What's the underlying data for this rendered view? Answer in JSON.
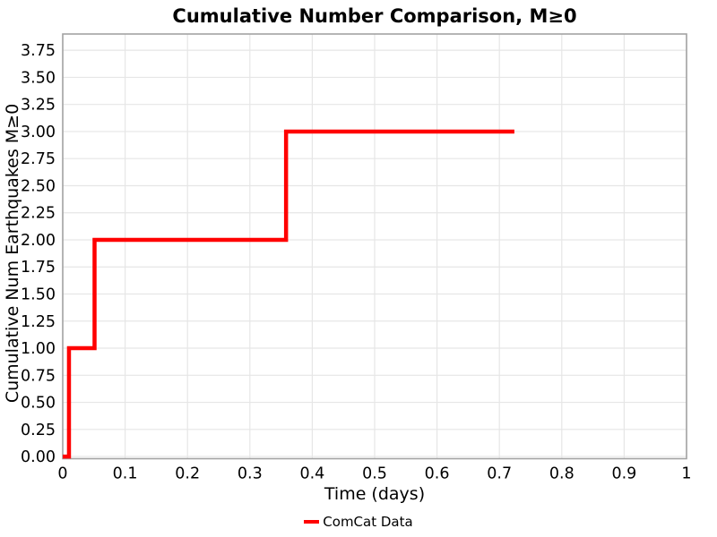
{
  "figure": {
    "title": "Cumulative Number Comparison, M≥0",
    "xlabel": "Time (days)",
    "ylabel": "Cumulative Num Earthquakes M≥0",
    "legend": {
      "label": "ComCat Data"
    }
  },
  "colors": {
    "line": "#ff0000",
    "grid": "#e6e6e6",
    "spine": "#a3a3a3",
    "text": "#000000",
    "background": "#ffffff"
  },
  "chart_data": {
    "type": "line",
    "subtype": "step-post",
    "title": "Cumulative Number Comparison, M≥0",
    "xlabel": "Time (days)",
    "ylabel": "Cumulative Num Earthquakes M≥0",
    "xlim": [
      0,
      1
    ],
    "ylim": [
      -0.02,
      3.9
    ],
    "grid": true,
    "legend_position": "bottom-center",
    "xticks": [
      0,
      0.1,
      0.2,
      0.3,
      0.4,
      0.5,
      0.6,
      0.7,
      0.8,
      0.9,
      1
    ],
    "xtick_labels": [
      "0",
      "0.1",
      "0.2",
      "0.3",
      "0.4",
      "0.5",
      "0.6",
      "0.7",
      "0.8",
      "0.9",
      "1"
    ],
    "yticks": [
      0,
      0.25,
      0.5,
      0.75,
      1,
      1.25,
      1.5,
      1.75,
      2,
      2.25,
      2.5,
      2.75,
      3,
      3.25,
      3.5,
      3.75
    ],
    "ytick_labels": [
      "0.00",
      "0.25",
      "0.50",
      "0.75",
      "1.00",
      "1.25",
      "1.50",
      "1.75",
      "2.00",
      "2.25",
      "2.50",
      "2.75",
      "3.00",
      "3.25",
      "3.50",
      "3.75"
    ],
    "series": [
      {
        "name": "ComCat Data",
        "color": "#ff0000",
        "linewidth": 4.5,
        "step": "post",
        "x": [
          0,
          0.01,
          0.051,
          0.358,
          0.724
        ],
        "y": [
          0,
          1,
          2,
          3,
          3
        ],
        "event_times": [
          0.01,
          0.051,
          0.358
        ],
        "cumulative_counts": [
          1,
          2,
          3
        ]
      }
    ]
  }
}
